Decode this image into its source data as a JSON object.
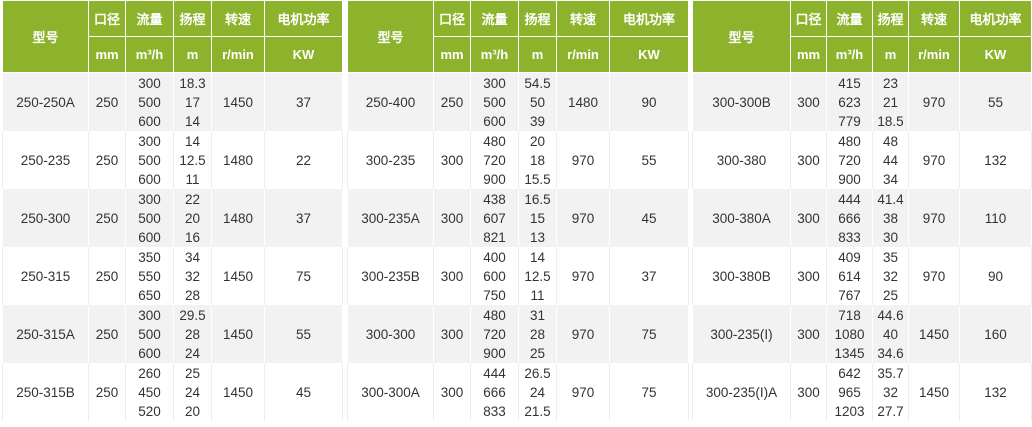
{
  "header": {
    "model": "型号",
    "caliber": "口径",
    "flow": "流量",
    "head": "扬程",
    "speed": "转速",
    "power": "电机功率",
    "units": {
      "caliber": "mm",
      "flow": "m³/h",
      "head": "m",
      "speed": "r/min",
      "power": "KW"
    }
  },
  "colors": {
    "header_bg": "#8db22b",
    "header_text": "#ffffff",
    "row_alt": "#f2f2f2"
  },
  "tables": [
    {
      "rows": [
        {
          "model": "250-250A",
          "caliber": "250",
          "flow": [
            "300",
            "500",
            "600"
          ],
          "head": [
            "18.3",
            "17",
            "14"
          ],
          "speed": "1450",
          "power": "37"
        },
        {
          "model": "250-235",
          "caliber": "250",
          "flow": [
            "300",
            "500",
            "600"
          ],
          "head": [
            "14",
            "12.5",
            "11"
          ],
          "speed": "1480",
          "power": "22"
        },
        {
          "model": "250-300",
          "caliber": "250",
          "flow": [
            "300",
            "500",
            "600"
          ],
          "head": [
            "22",
            "20",
            "16"
          ],
          "speed": "1480",
          "power": "37"
        },
        {
          "model": "250-315",
          "caliber": "250",
          "flow": [
            "350",
            "550",
            "650"
          ],
          "head": [
            "34",
            "32",
            "28"
          ],
          "speed": "1450",
          "power": "75"
        },
        {
          "model": "250-315A",
          "caliber": "250",
          "flow": [
            "300",
            "500",
            "600"
          ],
          "head": [
            "29.5",
            "28",
            "24"
          ],
          "speed": "1450",
          "power": "55"
        },
        {
          "model": "250-315B",
          "caliber": "250",
          "flow": [
            "260",
            "450",
            "520"
          ],
          "head": [
            "25",
            "24",
            "20"
          ],
          "speed": "1450",
          "power": "45"
        }
      ]
    },
    {
      "rows": [
        {
          "model": "250-400",
          "caliber": "250",
          "flow": [
            "300",
            "500",
            "600"
          ],
          "head": [
            "54.5",
            "50",
            "39"
          ],
          "speed": "1480",
          "power": "90"
        },
        {
          "model": "300-235",
          "caliber": "300",
          "flow": [
            "480",
            "720",
            "900"
          ],
          "head": [
            "20",
            "18",
            "15.5"
          ],
          "speed": "970",
          "power": "55"
        },
        {
          "model": "300-235A",
          "caliber": "300",
          "flow": [
            "438",
            "607",
            "821"
          ],
          "head": [
            "16.5",
            "15",
            "13"
          ],
          "speed": "970",
          "power": "45"
        },
        {
          "model": "300-235B",
          "caliber": "300",
          "flow": [
            "400",
            "600",
            "750"
          ],
          "head": [
            "14",
            "12.5",
            "11"
          ],
          "speed": "970",
          "power": "37"
        },
        {
          "model": "300-300",
          "caliber": "300",
          "flow": [
            "480",
            "720",
            "900"
          ],
          "head": [
            "31",
            "28",
            "25"
          ],
          "speed": "970",
          "power": "75"
        },
        {
          "model": "300-300A",
          "caliber": "300",
          "flow": [
            "444",
            "666",
            "833"
          ],
          "head": [
            "26.5",
            "24",
            "21.5"
          ],
          "speed": "970",
          "power": "75"
        }
      ]
    },
    {
      "rows": [
        {
          "model": "300-300B",
          "caliber": "300",
          "flow": [
            "415",
            "623",
            "779"
          ],
          "head": [
            "23",
            "21",
            "18.5"
          ],
          "speed": "970",
          "power": "55"
        },
        {
          "model": "300-380",
          "caliber": "300",
          "flow": [
            "480",
            "720",
            "900"
          ],
          "head": [
            "48",
            "44",
            "34"
          ],
          "speed": "970",
          "power": "132"
        },
        {
          "model": "300-380A",
          "caliber": "300",
          "flow": [
            "444",
            "666",
            "833"
          ],
          "head": [
            "41.4",
            "38",
            "30"
          ],
          "speed": "970",
          "power": "110"
        },
        {
          "model": "300-380B",
          "caliber": "300",
          "flow": [
            "409",
            "614",
            "767"
          ],
          "head": [
            "35",
            "32",
            "25"
          ],
          "speed": "970",
          "power": "90"
        },
        {
          "model": "300-235(I)",
          "caliber": "300",
          "flow": [
            "718",
            "1080",
            "1345"
          ],
          "head": [
            "44.6",
            "40",
            "34.6"
          ],
          "speed": "1450",
          "power": "160"
        },
        {
          "model": "300-235(I)A",
          "caliber": "300",
          "flow": [
            "642",
            "965",
            "1203"
          ],
          "head": [
            "35.7",
            "32",
            "27.7"
          ],
          "speed": "1450",
          "power": "132"
        }
      ]
    }
  ]
}
